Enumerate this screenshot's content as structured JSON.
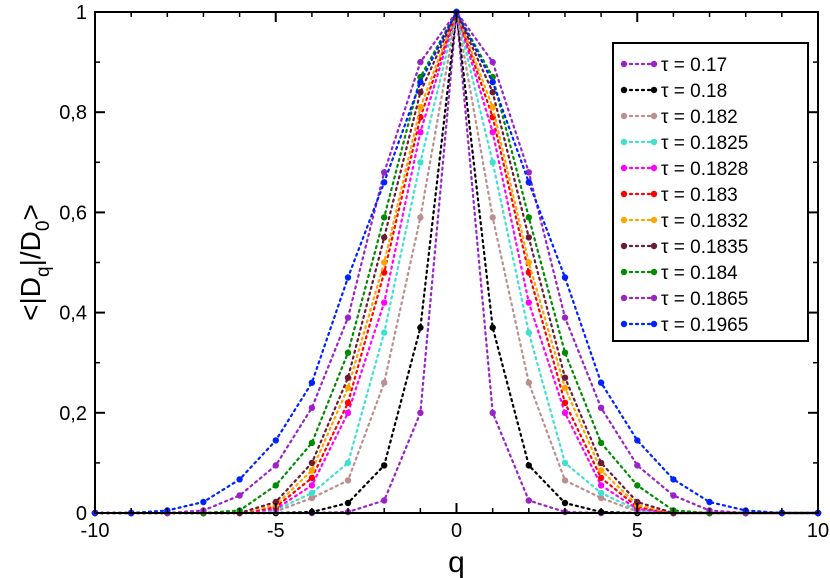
{
  "chart_data": {
    "type": "line",
    "title": "",
    "xlabel": "q",
    "ylabel_main": "<|D",
    "ylabel_sub1": "q",
    "ylabel_mid": "|/D",
    "ylabel_sub2": "0",
    "ylabel_end": ">",
    "xlim": [
      -10,
      10
    ],
    "ylim": [
      0,
      1
    ],
    "x_ticks": [
      -10,
      -5,
      0,
      5,
      10
    ],
    "x_tick_labels": [
      "-10",
      "-5",
      "0",
      "5",
      "10"
    ],
    "y_ticks": [
      0,
      0.2,
      0.4,
      0.6,
      0.8,
      1
    ],
    "y_tick_labels": [
      "0",
      "0,2",
      "0,4",
      "0,6",
      "0,8",
      "1"
    ],
    "grid": false,
    "legend_position": "top-right",
    "line_style": "dotted with circle markers",
    "x": [
      -10,
      -9,
      -8,
      -7,
      -6,
      -5,
      -4,
      -3,
      -2,
      -1,
      0,
      1,
      2,
      3,
      4,
      5,
      6,
      7,
      8,
      9,
      10
    ],
    "series": [
      {
        "name": "τ = 0.17",
        "color": "#9a22c8",
        "values": [
          0,
          0,
          0,
          0,
          0,
          0,
          0,
          0.002,
          0.025,
          0.2,
          1,
          0.2,
          0.025,
          0.002,
          0,
          0,
          0,
          0,
          0,
          0,
          0
        ]
      },
      {
        "name": "τ = 0.18",
        "color": "#000000",
        "values": [
          0,
          0,
          0,
          0,
          0,
          0,
          0.002,
          0.02,
          0.095,
          0.37,
          1,
          0.37,
          0.095,
          0.02,
          0.002,
          0,
          0,
          0,
          0,
          0,
          0
        ]
      },
      {
        "name": "τ = 0.182",
        "color": "#bc8f8f",
        "values": [
          0,
          0,
          0,
          0,
          0,
          0.003,
          0.03,
          0.065,
          0.26,
          0.59,
          1,
          0.59,
          0.26,
          0.065,
          0.03,
          0.003,
          0,
          0,
          0,
          0,
          0
        ]
      },
      {
        "name": "τ = 0.1825",
        "color": "#40e0d0",
        "values": [
          0,
          0,
          0,
          0,
          0,
          0.006,
          0.04,
          0.1,
          0.36,
          0.7,
          1,
          0.7,
          0.36,
          0.1,
          0.04,
          0.006,
          0,
          0,
          0,
          0,
          0
        ]
      },
      {
        "name": "τ = 0.1828",
        "color": "#ff00ff",
        "values": [
          0,
          0,
          0,
          0,
          0,
          0.008,
          0.055,
          0.2,
          0.42,
          0.76,
          1,
          0.76,
          0.42,
          0.2,
          0.055,
          0.008,
          0,
          0,
          0,
          0,
          0
        ]
      },
      {
        "name": "τ = 0.183",
        "color": "#ff0000",
        "values": [
          0,
          0,
          0,
          0,
          0,
          0.012,
          0.07,
          0.22,
          0.48,
          0.79,
          1,
          0.79,
          0.48,
          0.22,
          0.07,
          0.012,
          0,
          0,
          0,
          0,
          0
        ]
      },
      {
        "name": "τ = 0.1832",
        "color": "#ffa500",
        "values": [
          0,
          0,
          0,
          0,
          0,
          0.016,
          0.085,
          0.25,
          0.5,
          0.81,
          1,
          0.81,
          0.5,
          0.25,
          0.085,
          0.016,
          0,
          0,
          0,
          0,
          0
        ]
      },
      {
        "name": "τ = 0.1835",
        "color": "#6b1a38",
        "values": [
          0,
          0,
          0,
          0,
          0,
          0.022,
          0.1,
          0.27,
          0.55,
          0.84,
          1,
          0.84,
          0.55,
          0.27,
          0.1,
          0.022,
          0,
          0,
          0,
          0,
          0
        ]
      },
      {
        "name": "τ = 0.184",
        "color": "#008b00",
        "values": [
          0,
          0,
          0,
          0,
          0.005,
          0.055,
          0.14,
          0.32,
          0.59,
          0.87,
          1,
          0.87,
          0.59,
          0.32,
          0.14,
          0.055,
          0.005,
          0,
          0,
          0,
          0
        ]
      },
      {
        "name": "τ = 0.1865",
        "color": "#9a22c8",
        "values": [
          0,
          0,
          0,
          0.005,
          0.035,
          0.095,
          0.21,
          0.39,
          0.68,
          0.9,
          1,
          0.9,
          0.68,
          0.39,
          0.21,
          0.095,
          0.035,
          0.005,
          0,
          0,
          0
        ]
      },
      {
        "name": "τ = 0.1965",
        "color": "#0022ff",
        "values": [
          0,
          0,
          0.005,
          0.022,
          0.067,
          0.145,
          0.26,
          0.47,
          0.66,
          0.86,
          1,
          0.86,
          0.66,
          0.47,
          0.26,
          0.145,
          0.067,
          0.022,
          0.005,
          0,
          0
        ]
      }
    ]
  }
}
